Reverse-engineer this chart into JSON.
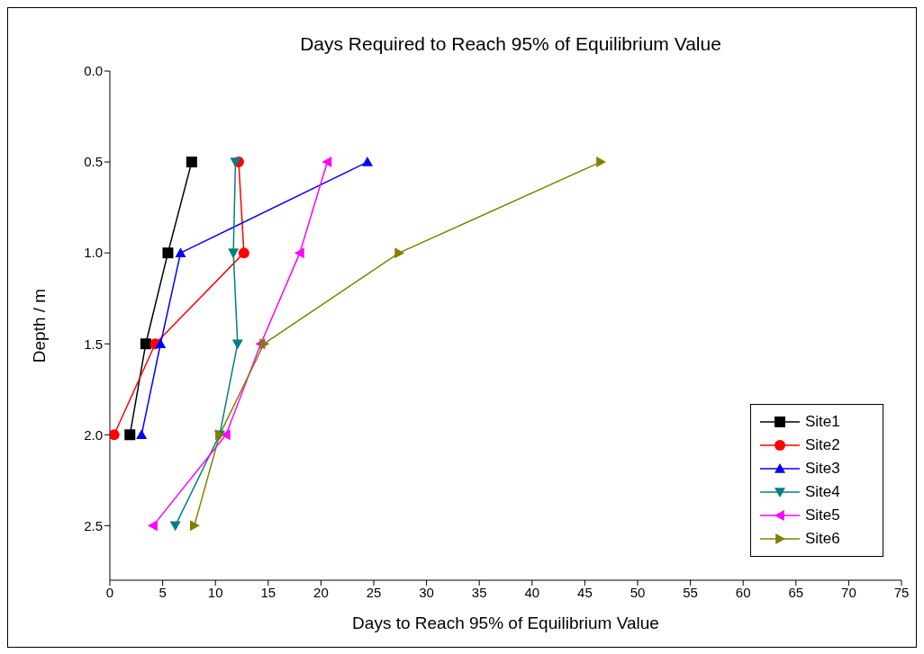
{
  "chart_data": {
    "type": "line",
    "title": "Days Required to Reach 95% of Equilibrium Value",
    "xlabel": "Days to Reach 95% of Equilibrium Value",
    "ylabel": "Depth / m",
    "xlim": [
      0,
      75
    ],
    "xticks": [
      0,
      5,
      10,
      15,
      20,
      25,
      30,
      35,
      40,
      45,
      50,
      55,
      60,
      65,
      70,
      75
    ],
    "ylim": [
      2.8,
      0
    ],
    "yticks": [
      {
        "value": 0,
        "label": "0.0"
      },
      0.5,
      {
        "value": 1,
        "label": "1.0"
      },
      1.5,
      {
        "value": 2,
        "label": "2.0"
      },
      2.5
    ],
    "grid": false,
    "legend": "bottom right",
    "line_style": "solid",
    "series": [
      {
        "name": "Site1",
        "color": "#000000",
        "marker": "square",
        "x": [
          7.75,
          5.5,
          3.4,
          1.9
        ],
        "values": [
          0.5,
          1.0,
          1.5,
          2.0
        ]
      },
      {
        "name": "Site2",
        "color": "#ff0000",
        "marker": "circle",
        "x": [
          12.2,
          12.7,
          4.3,
          0.4
        ],
        "values": [
          0.5,
          1.0,
          1.5,
          2.0
        ]
      },
      {
        "name": "Site3",
        "color": "#0000ff",
        "marker": "triangle",
        "x": [
          24.4,
          6.7,
          4.8,
          3.0
        ],
        "values": [
          0.5,
          1.0,
          1.5,
          2.0
        ]
      },
      {
        "name": "Site4",
        "color": "#008080",
        "marker": "triangle-down",
        "x": [
          11.9,
          11.7,
          12.1,
          10.4,
          6.2
        ],
        "values": [
          0.5,
          1.0,
          1.5,
          2.0,
          2.5
        ]
      },
      {
        "name": "Site5",
        "color": "#ff00ff",
        "marker": "triangle-left",
        "x": [
          20.6,
          18.0,
          14.3,
          11.0,
          4.1
        ],
        "values": [
          0.5,
          1.0,
          1.5,
          2.0,
          2.5
        ]
      },
      {
        "name": "Site6",
        "color": "#808000",
        "marker": "triangle-right",
        "x": [
          46.5,
          27.4,
          14.6,
          10.4,
          8.0
        ],
        "values": [
          0.5,
          1.0,
          1.5,
          2.0,
          2.5
        ]
      }
    ]
  }
}
